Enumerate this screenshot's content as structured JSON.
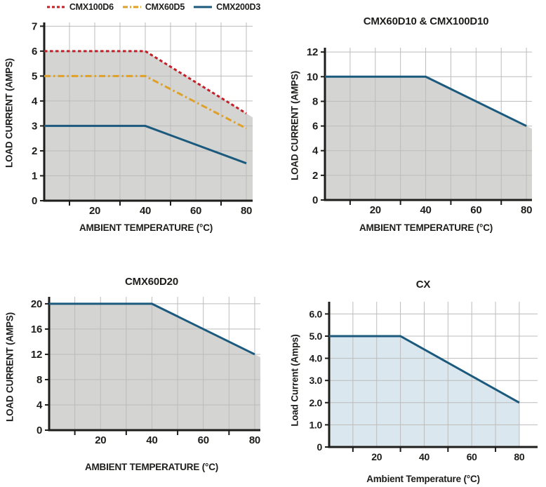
{
  "colors": {
    "red": "#c32127",
    "orange": "#dfa027",
    "blue": "#1b5a7d",
    "gray_fill": "#d4d4d3",
    "light_blue_fill": "#dbe7ee",
    "grid": "#bcbcbc",
    "axis": "#1d1d1b",
    "text": "#1d1d1b"
  },
  "legend": {
    "items": [
      {
        "label": "CMX100D6",
        "color": "#c32127",
        "style": "dashed"
      },
      {
        "label": "CMX60D5",
        "color": "#dfa027",
        "style": "dashdot"
      },
      {
        "label": "CMX200D3",
        "color": "#1b5a7d",
        "style": "solid"
      }
    ]
  },
  "chart_data": [
    {
      "type": "line",
      "title": "",
      "xlabel": "AMBIENT TEMPERATURE (°C)",
      "ylabel": "LOAD CURRENT (AMPS)",
      "xlim": [
        0,
        80
      ],
      "ylim": [
        0,
        7
      ],
      "xticks": [
        20,
        40,
        60,
        80
      ],
      "xtick_labels": [
        "20",
        "40",
        "60",
        "80"
      ],
      "xticks_minor": [
        10,
        30,
        50,
        70
      ],
      "yticks": [
        0,
        1,
        2,
        3,
        4,
        5,
        6,
        7
      ],
      "ytick_labels": [
        "0",
        "1",
        "2",
        "3",
        "4",
        "5",
        "6",
        "7"
      ],
      "grid": true,
      "legend_position": "top",
      "fill_color": "#d4d4d3",
      "series": [
        {
          "name": "CMX100D6",
          "color": "#c32127",
          "dash": "dashed",
          "points": [
            [
              0,
              6
            ],
            [
              40,
              6
            ],
            [
              80,
              3.5
            ]
          ]
        },
        {
          "name": "CMX60D5",
          "color": "#dfa027",
          "dash": "dashdot",
          "points": [
            [
              0,
              5
            ],
            [
              40,
              5
            ],
            [
              80,
              2.9
            ]
          ]
        },
        {
          "name": "CMX200D3",
          "color": "#1b5a7d",
          "dash": "solid",
          "points": [
            [
              0,
              3
            ],
            [
              40,
              3
            ],
            [
              80,
              1.5
            ]
          ]
        }
      ]
    },
    {
      "type": "line",
      "title": "CMX60D10 & CMX100D10",
      "xlabel": "AMBIENT TEMPERATURE (°C)",
      "ylabel": "LOAD CURRENT (AMPS)",
      "xlim": [
        0,
        80
      ],
      "ylim": [
        0,
        12
      ],
      "xticks": [
        20,
        40,
        60,
        80
      ],
      "xtick_labels": [
        "20",
        "40",
        "60",
        "80"
      ],
      "xticks_minor": [
        10,
        30,
        50,
        70
      ],
      "yticks": [
        0,
        2,
        4,
        6,
        8,
        10,
        12
      ],
      "ytick_labels": [
        "0",
        "2",
        "4",
        "6",
        "8",
        "10",
        "12"
      ],
      "grid": true,
      "fill_color": "#d4d4d3",
      "series": [
        {
          "name": "CMX60D10 & CMX100D10",
          "color": "#1b5a7d",
          "dash": "solid",
          "points": [
            [
              0,
              10
            ],
            [
              40,
              10
            ],
            [
              80,
              6
            ]
          ]
        }
      ]
    },
    {
      "type": "line",
      "title": "CMX60D20",
      "xlabel": "AMBIENT TEMPERATURE (°C)",
      "ylabel": "LOAD CURRENT (AMPS)",
      "xlim": [
        0,
        80
      ],
      "ylim": [
        0,
        20
      ],
      "xticks": [
        20,
        40,
        60,
        80
      ],
      "xtick_labels": [
        "20",
        "40",
        "60",
        "80"
      ],
      "xticks_minor": [
        10,
        30,
        50,
        70
      ],
      "yticks": [
        0,
        4,
        8,
        12,
        16,
        20
      ],
      "ytick_labels": [
        "0",
        "4",
        "8",
        "12",
        "16",
        "20"
      ],
      "grid": true,
      "fill_color": "#d4d4d3",
      "series": [
        {
          "name": "CMX60D20",
          "color": "#1b5a7d",
          "dash": "solid",
          "points": [
            [
              0,
              20
            ],
            [
              40,
              20
            ],
            [
              80,
              12
            ]
          ]
        }
      ]
    },
    {
      "type": "line",
      "title": "CX",
      "xlabel": "Ambient Temperature (°C)",
      "ylabel": "Load Current (Amps)",
      "xlim": [
        0,
        80
      ],
      "ylim": [
        0,
        6
      ],
      "xticks": [
        20,
        40,
        60,
        80
      ],
      "xtick_labels": [
        "20",
        "40",
        "60",
        "80"
      ],
      "xticks_minor": [
        10,
        30,
        50,
        70
      ],
      "yticks": [
        0,
        1,
        2,
        3,
        4,
        5,
        6
      ],
      "ytick_labels": [
        "0",
        "1.0",
        "2.0",
        "3.0",
        "4.0",
        "5.0",
        "6.0"
      ],
      "grid": true,
      "fill_color": "#dbe7ee",
      "series": [
        {
          "name": "CX",
          "color": "#1b5a7d",
          "dash": "solid",
          "points": [
            [
              0,
              5
            ],
            [
              30,
              5
            ],
            [
              80,
              2
            ]
          ]
        }
      ]
    }
  ]
}
